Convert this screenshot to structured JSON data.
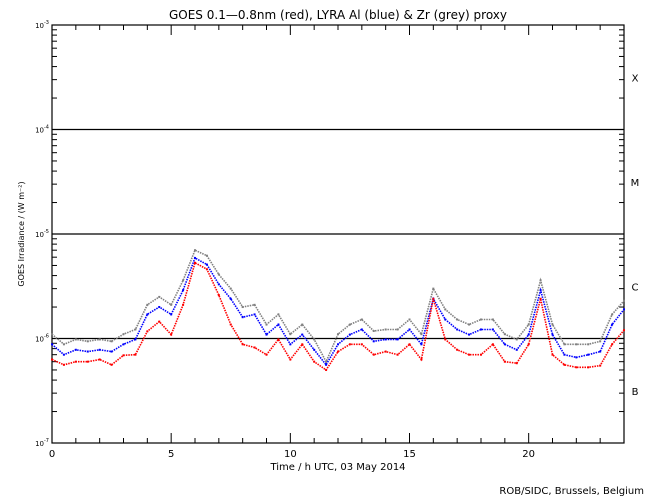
{
  "chart_data": {
    "type": "scatter",
    "title": "GOES 0.1—0.8nm (red), LYRA Al (blue) & Zr (grey) proxy",
    "xlabel": "Time / h UTC, 03 May 2014",
    "ylabel": "GOES Irradiance / (W m⁻²)",
    "xlim": [
      0,
      24
    ],
    "ylim": [
      1e-07,
      0.001
    ],
    "yscale": "log",
    "x_ticks": [
      0,
      5,
      10,
      15,
      20
    ],
    "y_ticks": [
      {
        "value": 0.001,
        "base": "10",
        "exp": "-3"
      },
      {
        "value": 0.0001,
        "base": "10",
        "exp": "-4"
      },
      {
        "value": 1e-05,
        "base": "10",
        "exp": "-5"
      },
      {
        "value": 1e-06,
        "base": "10",
        "exp": "-6"
      },
      {
        "value": 1e-07,
        "base": "10",
        "exp": "-7"
      }
    ],
    "reference_lines": [
      0.0001,
      1e-05,
      1e-06
    ],
    "flare_classes": [
      {
        "label": "X",
        "center": 0.000316
      },
      {
        "label": "M",
        "center": 3.16e-05
      },
      {
        "label": "C",
        "center": 3.16e-06
      },
      {
        "label": "B",
        "center": 3.16e-07
      }
    ],
    "x": [
      0,
      0.5,
      1,
      1.5,
      2,
      2.5,
      3,
      3.5,
      4,
      4.5,
      5,
      5.5,
      6,
      6.5,
      7,
      7.5,
      8,
      8.5,
      9,
      9.5,
      10,
      10.5,
      11,
      11.5,
      12,
      12.5,
      13,
      13.5,
      14,
      14.5,
      15,
      15.5,
      16,
      16.5,
      17,
      17.5,
      18,
      18.5,
      19,
      19.5,
      20,
      20.5,
      21,
      21.5,
      22,
      22.5,
      23,
      23.5,
      24
    ],
    "series": [
      {
        "name": "GOES 0.1-0.8nm",
        "color": "#ff0000",
        "values": [
          6.3e-07,
          5.6e-07,
          6e-07,
          6e-07,
          6.3e-07,
          5.6e-07,
          6.9e-07,
          7e-07,
          1.17e-06,
          1.45e-06,
          1.09e-06,
          2.1e-06,
          5.3e-06,
          4.6e-06,
          2.6e-06,
          1.36e-06,
          8.8e-07,
          8.2e-07,
          7e-07,
          9.8e-07,
          6.3e-07,
          8.8e-07,
          6e-07,
          5e-07,
          7.5e-07,
          8.8e-07,
          8.8e-07,
          7e-07,
          7.5e-07,
          7e-07,
          8.8e-07,
          6.3e-07,
          2.4e-06,
          9.8e-07,
          7.8e-07,
          7e-07,
          7e-07,
          8.8e-07,
          6e-07,
          5.8e-07,
          8.8e-07,
          2.4e-06,
          7e-07,
          5.6e-07,
          5.3e-07,
          5.3e-07,
          5.5e-07,
          8.8e-07,
          1.2e-06
        ]
      },
      {
        "name": "LYRA Al proxy",
        "color": "#0000ff",
        "values": [
          8.8e-07,
          7e-07,
          7.8e-07,
          7.5e-07,
          7.8e-07,
          7.5e-07,
          8.8e-07,
          9.8e-07,
          1.7e-06,
          2e-06,
          1.7e-06,
          2.9e-06,
          5.9e-06,
          5.1e-06,
          3.3e-06,
          2.4e-06,
          1.6e-06,
          1.7e-06,
          1.09e-06,
          1.36e-06,
          8.8e-07,
          1.09e-06,
          7.8e-07,
          5.6e-07,
          8.8e-07,
          1.09e-06,
          1.22e-06,
          9.4e-07,
          9.8e-07,
          9.8e-07,
          1.22e-06,
          8.8e-07,
          2.4e-06,
          1.52e-06,
          1.22e-06,
          1.09e-06,
          1.22e-06,
          1.22e-06,
          8.8e-07,
          7.8e-07,
          1.09e-06,
          2.9e-06,
          1.09e-06,
          7e-07,
          6.6e-07,
          7e-07,
          7.5e-07,
          1.36e-06,
          1.9e-06
        ]
      },
      {
        "name": "LYRA Zr proxy",
        "color": "#808080",
        "values": [
          1.1e-06,
          8.8e-07,
          9.8e-07,
          9.4e-07,
          9.8e-07,
          9.4e-07,
          1.1e-06,
          1.22e-06,
          2.1e-06,
          2.5e-06,
          2.1e-06,
          3.6e-06,
          7e-06,
          6.2e-06,
          4.1e-06,
          3e-06,
          2e-06,
          2.1e-06,
          1.36e-06,
          1.7e-06,
          1.1e-06,
          1.36e-06,
          9.8e-07,
          6e-07,
          1.1e-06,
          1.36e-06,
          1.52e-06,
          1.18e-06,
          1.22e-06,
          1.22e-06,
          1.52e-06,
          1.1e-06,
          3e-06,
          1.9e-06,
          1.52e-06,
          1.36e-06,
          1.52e-06,
          1.52e-06,
          1.1e-06,
          9.8e-07,
          1.36e-06,
          3.6e-06,
          1.36e-06,
          8.8e-07,
          8.8e-07,
          8.8e-07,
          9.4e-07,
          1.7e-06,
          2.3e-06
        ]
      }
    ],
    "credit": "ROB/SIDC, Brussels, Belgium"
  }
}
